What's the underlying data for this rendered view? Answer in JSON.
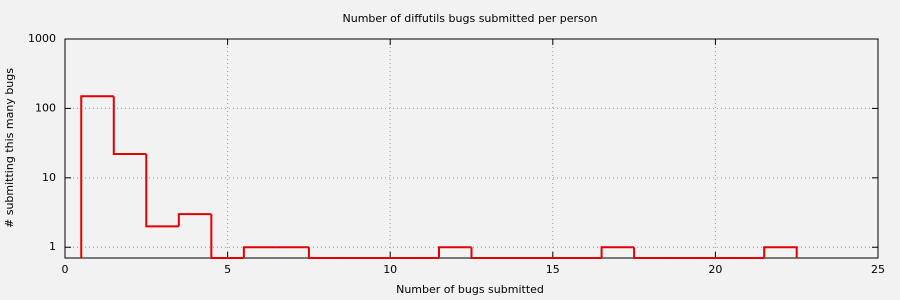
{
  "chart_data": {
    "type": "histogram",
    "title": "Number of diffutils bugs submitted per person",
    "x_label": "Number of bugs submitted",
    "y_label": "# submitting this many bugs",
    "bins": [
      0.5,
      1.5,
      2.5,
      3.5,
      4.5,
      5.5,
      6.5,
      7.5,
      8.5,
      9.5,
      10.5,
      11.5,
      12.5,
      13.5,
      14.5,
      15.5,
      16.5,
      17.5,
      18.5,
      19.5,
      20.5,
      21.5,
      22.5
    ],
    "values": [
      150,
      22,
      2,
      3,
      0,
      1,
      1,
      0,
      0,
      0,
      0,
      1,
      0,
      0,
      0,
      0,
      1,
      0,
      0,
      0,
      0,
      1
    ],
    "color": "#e00000",
    "xlim": [
      0,
      25
    ],
    "xticks": [
      0,
      5,
      10,
      15,
      20,
      25
    ],
    "ylim": [
      0.7,
      1000
    ],
    "yticks": [
      1,
      10,
      100,
      1000
    ],
    "log_y": true,
    "grid": true
  }
}
